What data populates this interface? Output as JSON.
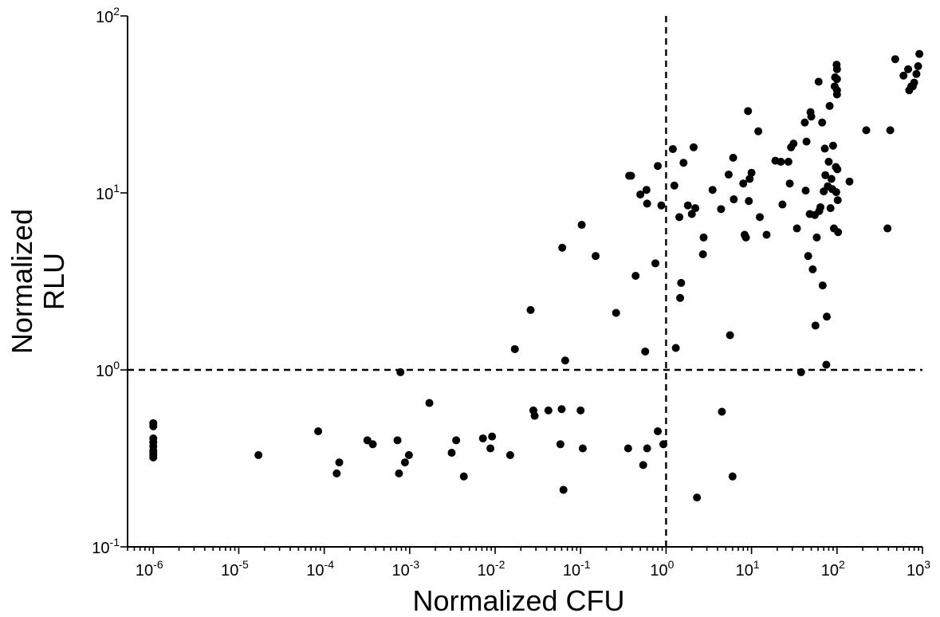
{
  "chart_data": {
    "type": "scatter",
    "title": "",
    "xlabel": "Normalized CFU",
    "ylabel_lines": [
      "Normalized",
      "RLU"
    ],
    "xscale": "log",
    "yscale": "log",
    "xlim": [
      5e-07,
      1000
    ],
    "ylim": [
      0.1,
      100
    ],
    "grid": false,
    "legend": "none",
    "x_ticks": [
      {
        "base": "10",
        "exp": "-6",
        "value": 1e-06
      },
      {
        "base": "10",
        "exp": "-5",
        "value": 1e-05
      },
      {
        "base": "10",
        "exp": "-4",
        "value": 0.0001
      },
      {
        "base": "10",
        "exp": "-3",
        "value": 0.001
      },
      {
        "base": "10",
        "exp": "-2",
        "value": 0.01
      },
      {
        "base": "10",
        "exp": "-1",
        "value": 0.1
      },
      {
        "base": "10",
        "exp": "0",
        "value": 1
      },
      {
        "base": "10",
        "exp": "1",
        "value": 10
      },
      {
        "base": "10",
        "exp": "2",
        "value": 100
      },
      {
        "base": "10",
        "exp": "3",
        "value": 1000
      }
    ],
    "y_ticks": [
      {
        "base": "10",
        "exp": "-1",
        "value": 0.1
      },
      {
        "base": "10",
        "exp": "0",
        "value": 1
      },
      {
        "base": "10",
        "exp": "1",
        "value": 10
      },
      {
        "base": "10",
        "exp": "2",
        "value": 100
      }
    ],
    "reference_lines": [
      {
        "axis": "x",
        "value": 1,
        "style": "dashed"
      },
      {
        "axis": "y",
        "value": 1,
        "style": "dashed"
      }
    ],
    "series": [
      {
        "marker_color": "#000000",
        "points": [
          [
            1e-06,
            0.5
          ],
          [
            1e-06,
            0.48
          ],
          [
            1e-06,
            0.41
          ],
          [
            1e-06,
            0.39
          ],
          [
            1e-06,
            0.37
          ],
          [
            1e-06,
            0.35
          ],
          [
            1e-06,
            0.34
          ],
          [
            1e-06,
            0.33
          ],
          [
            1e-06,
            0.32
          ],
          [
            1.7e-05,
            0.33
          ],
          [
            8.5e-05,
            0.45
          ],
          [
            0.00014,
            0.26
          ],
          [
            0.00015,
            0.3
          ],
          [
            0.00032,
            0.4
          ],
          [
            0.00037,
            0.38
          ],
          [
            0.00072,
            0.4
          ],
          [
            0.00075,
            0.26
          ],
          [
            0.00078,
            0.97
          ],
          [
            0.00088,
            0.3
          ],
          [
            0.00098,
            0.33
          ],
          [
            0.0017,
            0.65
          ],
          [
            0.0031,
            0.34
          ],
          [
            0.0035,
            0.4
          ],
          [
            0.0043,
            0.25
          ],
          [
            0.0072,
            0.41
          ],
          [
            0.0088,
            0.36
          ],
          [
            0.0092,
            0.42
          ],
          [
            0.015,
            0.33
          ],
          [
            0.017,
            1.31
          ],
          [
            0.026,
            2.18
          ],
          [
            0.028,
            0.59
          ],
          [
            0.029,
            0.55
          ],
          [
            0.042,
            0.59
          ],
          [
            0.058,
            0.38
          ],
          [
            0.06,
            0.6
          ],
          [
            0.061,
            4.9
          ],
          [
            0.063,
            0.21
          ],
          [
            0.066,
            1.13
          ],
          [
            0.1,
            0.59
          ],
          [
            0.103,
            6.6
          ],
          [
            0.106,
            0.36
          ],
          [
            0.15,
            4.4
          ],
          [
            0.26,
            2.1
          ],
          [
            0.36,
            0.36
          ],
          [
            0.37,
            12.5
          ],
          [
            0.39,
            12.5
          ],
          [
            0.44,
            3.4
          ],
          [
            0.5,
            9.8
          ],
          [
            0.54,
            0.29
          ],
          [
            0.57,
            1.27
          ],
          [
            0.59,
            10.4
          ],
          [
            0.6,
            8.7
          ],
          [
            0.6,
            0.36
          ],
          [
            0.75,
            4.0
          ],
          [
            0.8,
            14.2
          ],
          [
            0.8,
            0.45
          ],
          [
            0.88,
            8.5
          ],
          [
            0.93,
            0.38
          ],
          [
            1.2,
            17.7
          ],
          [
            1.25,
            11.0
          ],
          [
            1.3,
            1.33
          ],
          [
            1.43,
            7.3
          ],
          [
            1.46,
            2.55
          ],
          [
            1.5,
            3.1
          ],
          [
            1.6,
            14.8
          ],
          [
            1.8,
            8.5
          ],
          [
            2.0,
            7.6
          ],
          [
            2.1,
            18.1
          ],
          [
            2.2,
            8.2
          ],
          [
            2.3,
            0.19
          ],
          [
            2.7,
            4.5
          ],
          [
            2.75,
            5.6
          ],
          [
            3.5,
            10.4
          ],
          [
            4.4,
            8.1
          ],
          [
            4.5,
            0.58
          ],
          [
            5.4,
            12.7
          ],
          [
            5.6,
            1.57
          ],
          [
            6.0,
            0.25
          ],
          [
            6.1,
            15.8
          ],
          [
            6.2,
            9.2
          ],
          [
            8.0,
            11.3
          ],
          [
            8.3,
            5.8
          ],
          [
            8.6,
            5.6
          ],
          [
            9.1,
            29.0
          ],
          [
            9.3,
            9.0
          ],
          [
            9.5,
            12.0
          ],
          [
            10,
            13.0
          ],
          [
            12,
            22.3
          ],
          [
            12.5,
            7.3
          ],
          [
            15,
            5.8
          ],
          [
            19,
            15.2
          ],
          [
            22,
            15.0
          ],
          [
            23,
            8.6
          ],
          [
            27,
            15.0
          ],
          [
            28,
            11.3
          ],
          [
            29,
            18.1
          ],
          [
            31,
            19.0
          ],
          [
            34,
            6.3
          ],
          [
            38,
            0.97
          ],
          [
            42,
            25.0
          ],
          [
            43,
            10.3
          ],
          [
            44,
            19.5
          ],
          [
            46,
            4.4
          ],
          [
            48,
            7.6
          ],
          [
            49,
            28.6
          ],
          [
            50,
            27.0
          ],
          [
            52,
            3.7
          ],
          [
            55,
            7.5
          ],
          [
            56,
            1.78
          ],
          [
            58,
            5.6
          ],
          [
            61,
            42.5
          ],
          [
            62,
            7.9
          ],
          [
            64,
            8.3
          ],
          [
            67,
            25.0
          ],
          [
            68,
            3.0
          ],
          [
            70,
            10.2
          ],
          [
            72,
            17.8
          ],
          [
            73,
            12.6
          ],
          [
            75,
            1.07
          ],
          [
            76,
            2.0
          ],
          [
            78,
            10.9
          ],
          [
            80,
            15.0
          ],
          [
            82,
            31.0
          ],
          [
            84,
            8.2
          ],
          [
            86,
            12.0
          ],
          [
            88,
            10.5
          ],
          [
            90,
            18.5
          ],
          [
            92,
            6.3
          ],
          [
            94,
            40.0
          ],
          [
            95,
            45.0
          ],
          [
            97,
            14.0
          ],
          [
            98,
            10.1
          ],
          [
            99,
            53.0
          ],
          [
            100,
            50.0
          ],
          [
            100,
            44.0
          ],
          [
            100,
            36.0
          ],
          [
            100,
            38.0
          ],
          [
            101,
            13.6
          ],
          [
            102,
            9.1
          ],
          [
            103,
            6.0
          ],
          [
            140,
            11.6
          ],
          [
            220,
            22.6
          ],
          [
            390,
            6.3
          ],
          [
            420,
            22.6
          ],
          [
            480,
            57.0
          ],
          [
            600,
            46.0
          ],
          [
            680,
            50.0
          ],
          [
            700,
            38.0
          ],
          [
            740,
            40.0
          ],
          [
            770,
            40.0
          ],
          [
            800,
            42.0
          ],
          [
            850,
            47.0
          ],
          [
            890,
            52.0
          ],
          [
            920,
            61.0
          ]
        ]
      }
    ]
  }
}
